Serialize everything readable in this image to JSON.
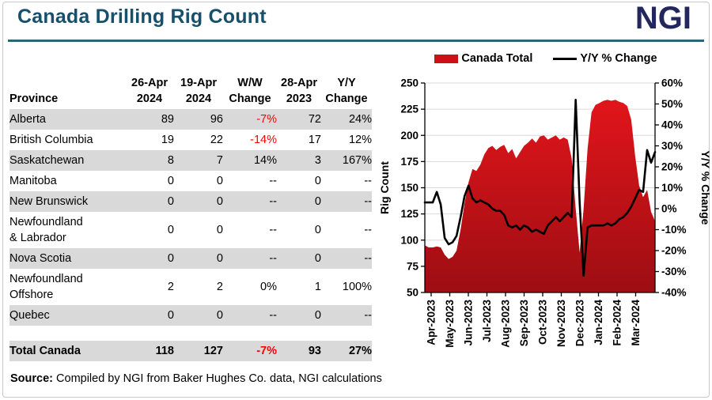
{
  "header": {
    "title": "Canada Drilling Rig Count",
    "logo": "NGI"
  },
  "colors": {
    "title_teal": "#17506b",
    "logo_navy": "#23275e",
    "rule_teal": "#2e6474",
    "series_red": "#cc1016",
    "negative_red": "#ff0000",
    "zebra_gray": "#d9d9d9",
    "gridline_gray": "#d9d9d9"
  },
  "table": {
    "headers": [
      "Province",
      "26-Apr\n2024",
      "19-Apr\n2024",
      "W/W\nChange",
      "28-Apr\n2023",
      "Y/Y\nChange"
    ],
    "rows": [
      {
        "province": "Alberta",
        "values": [
          "89",
          "96",
          "-7%",
          "72",
          "24%"
        ]
      },
      {
        "province": "British Columbia",
        "values": [
          "19",
          "22",
          "-14%",
          "17",
          "12%"
        ]
      },
      {
        "province": "Saskatchewan",
        "values": [
          "8",
          "7",
          "14%",
          "3",
          "167%"
        ]
      },
      {
        "province": "Manitoba",
        "values": [
          "0",
          "0",
          "--",
          "0",
          "--"
        ]
      },
      {
        "province": "New Brunswick",
        "values": [
          "0",
          "0",
          "--",
          "0",
          "--"
        ]
      },
      {
        "province": "Newfoundland\n& Labrador",
        "values": [
          "0",
          "0",
          "--",
          "0",
          "--"
        ]
      },
      {
        "province": "Nova Scotia",
        "values": [
          "0",
          "0",
          "--",
          "0",
          "--"
        ]
      },
      {
        "province": "Newfoundland\nOffshore",
        "values": [
          "2",
          "2",
          "0%",
          "1",
          "100%"
        ]
      },
      {
        "province": "Quebec",
        "values": [
          "0",
          "0",
          "--",
          "0",
          "--"
        ]
      }
    ],
    "total": {
      "province": "Total Canada",
      "values": [
        "118",
        "127",
        "-7%",
        "93",
        "27%"
      ]
    }
  },
  "footer": {
    "source_label": "Source:",
    "source_text": " Compiled by NGI from Baker Hughes Co. data, NGI calculations"
  },
  "chart_data": {
    "type": "area+line combo (weekly data, Apr-2023 through late Apr-2024)",
    "x_tick_labels": [
      "Apr-2023",
      "May-2023",
      "Jun-2023",
      "Jul-2023",
      "Aug-2023",
      "Sep-2023",
      "Oct-2023",
      "Nov-2023",
      "Dec-2023",
      "Jan-2024",
      "Feb-2024",
      "Mar-2024"
    ],
    "series": [
      {
        "name": "Canada Total",
        "type": "area",
        "axis": "left",
        "color": "#cc1016",
        "values": [
          95,
          93,
          93,
          94,
          93,
          86,
          82,
          84,
          90,
          110,
          135,
          155,
          168,
          166,
          172,
          182,
          188,
          190,
          186,
          189,
          191,
          183,
          187,
          178,
          184,
          190,
          193,
          197,
          193,
          199,
          200,
          196,
          198,
          200,
          196,
          198,
          196,
          178,
          130,
          88,
          130,
          187,
          222,
          229,
          231,
          233,
          234,
          233,
          234,
          232,
          231,
          228,
          215,
          180,
          152,
          141,
          148,
          127,
          118
        ]
      },
      {
        "name": "Y/Y % Change",
        "type": "line",
        "axis": "right",
        "color": "#000000",
        "values": [
          3,
          3,
          3,
          8,
          2,
          -14,
          -17,
          -16,
          -13,
          -4,
          6,
          11,
          5,
          3,
          4,
          3,
          2,
          0,
          -1,
          -1,
          -3,
          -8,
          -9,
          -8,
          -10,
          -8,
          -9,
          -11,
          -10,
          -11,
          -12,
          -8,
          -6,
          -4,
          -6,
          -4,
          -2,
          -4,
          52,
          3,
          -32,
          -9,
          -8,
          -8,
          -8,
          -8,
          -7,
          -8,
          -7,
          -5,
          -4,
          -2,
          1,
          5,
          9,
          8,
          28,
          22,
          27
        ]
      }
    ],
    "left_axis": {
      "title": "Rig Count",
      "min": 50,
      "max": 250,
      "ticks": [
        250,
        225,
        200,
        175,
        150,
        125,
        100,
        75,
        50
      ]
    },
    "right_axis": {
      "title": "Y/Y % Change",
      "min": -40,
      "max": 60,
      "ticks": [
        "60%",
        "50%",
        "40%",
        "30%",
        "20%",
        "10%",
        "0%",
        "-10%",
        "-20%",
        "-30%",
        "-40%"
      ],
      "negative_tick_color": "#ff0000"
    },
    "grid": "horizontal gridlines at left-axis steps",
    "legend_position": "top-center"
  }
}
